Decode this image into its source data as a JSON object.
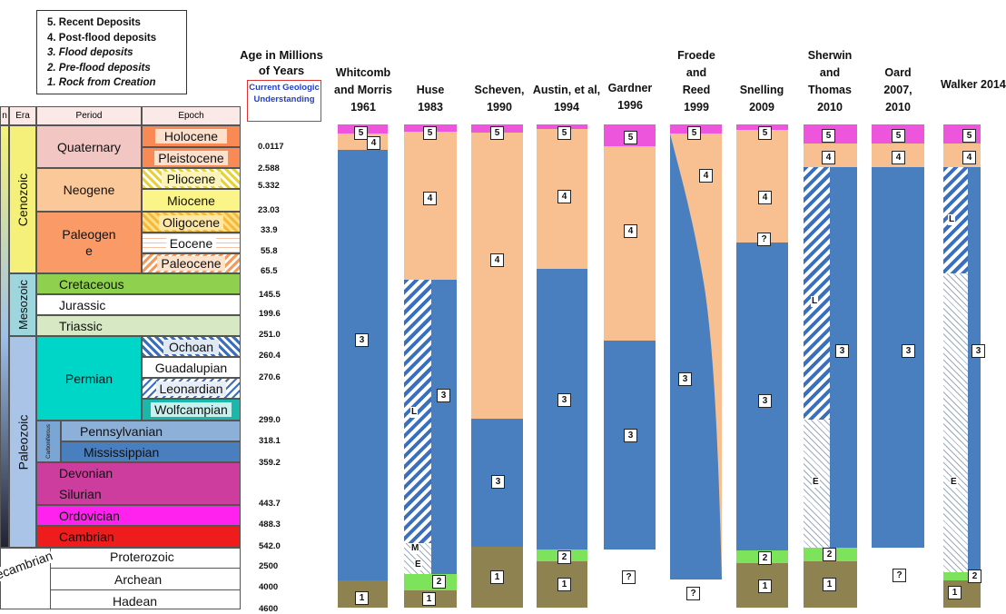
{
  "legend": {
    "item5": "5. Recent Deposits",
    "item4": "4. Post-flood deposits",
    "item3": "3. Flood deposits",
    "item2": "2. Pre-flood deposits",
    "item1": "1. Rock from Creation"
  },
  "age_title": "Age in Millions of Years",
  "current_geo": "Current Geologic Understanding",
  "ages": [
    "0.0117",
    "2.588",
    "5.332",
    "23.03",
    "33.9",
    "55.8",
    "65.5",
    "145.5",
    "199.6",
    "251.0",
    "260.4",
    "270.6",
    "299.0",
    "318.1",
    "359.2",
    "443.7",
    "488.3",
    "542.0",
    "2500",
    "4000",
    "4600"
  ],
  "table": {
    "headers": {
      "eon": "n",
      "era": "Era",
      "period": "Period",
      "epoch": "Epoch"
    },
    "eras": {
      "cenozoic": "Cenozoic",
      "mesozoic": "Mesozoic",
      "paleozoic": "Paleozoic",
      "precambrian": "ecambrian"
    },
    "periods": {
      "quaternary": "Quaternary",
      "neogene": "Neogene",
      "paleogene": "Paleogen e",
      "cretaceous": "Cretaceous",
      "jurassic": "Jurassic",
      "triassic": "Triassic",
      "permian": "Permian",
      "carboniferous": "Carboniferous",
      "pennsylvanian": "Pennsylvanian",
      "mississippian": "Mississippian",
      "devonian": "Devonian",
      "silurian": "Silurian",
      "ordovician": "Ordovician",
      "cambrian": "Cambrian",
      "proterozoic": "Proterozoic",
      "archean": "Archean",
      "hadean": "Hadean"
    },
    "epochs": {
      "holocene": "Holocene",
      "pleistocene": "Pleistocene",
      "pliocene": "Pliocene",
      "miocene": "Miocene",
      "oligocene": "Oligocene",
      "eocene": "Eocene",
      "paleocene": "Paleocene",
      "ochoan": "Ochoan",
      "guadalupian": "Guadalupian",
      "leonardian": "Leonardian",
      "wolfcampian": "Wolfcampian"
    }
  },
  "columns": [
    {
      "title": "Whitcomb and Morris 1961"
    },
    {
      "title": "Huse 1983"
    },
    {
      "title": "Scheven, 1990"
    },
    {
      "title": "Austin, et al, 1994"
    },
    {
      "title": "Gardner 1996"
    },
    {
      "title": "Froede and Reed 1999"
    },
    {
      "title": "Snelling 2009"
    },
    {
      "title": "Sherwin and Thomas 2010"
    },
    {
      "title": "Oard 2007, 2010"
    },
    {
      "title": "Walker 2014"
    }
  ],
  "marks": {
    "n1": "1",
    "n2": "2",
    "n3": "3",
    "n4": "4",
    "n5": "5",
    "q": "?",
    "L": "L",
    "M": "M",
    "E": "E"
  },
  "colors": {
    "recent": "#ee55dd",
    "postflood": "#f8c090",
    "flood": "#4a7fbf",
    "preflood": "#7ce35a",
    "creation": "#8e8350"
  }
}
